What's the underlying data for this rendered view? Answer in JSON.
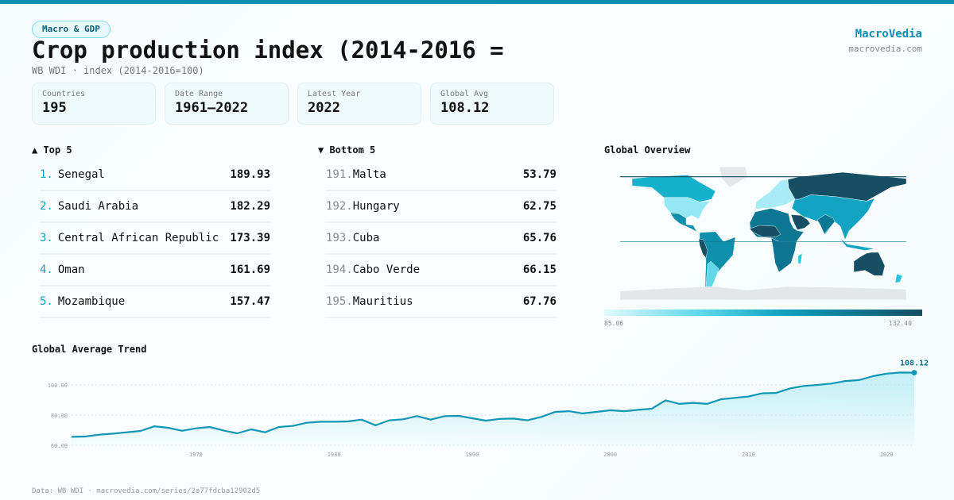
{
  "category": "Macro & GDP",
  "title": "Crop production index (2014-2016 =",
  "subtitle": "WB WDI · index (2014-2016=100)",
  "brand": {
    "name": "MacroVedia",
    "url": "macrovedia.com"
  },
  "stats": [
    {
      "label": "Countries",
      "value": "195"
    },
    {
      "label": "Date Range",
      "value": "1961–2022"
    },
    {
      "label": "Latest Year",
      "value": "2022"
    },
    {
      "label": "Global Avg",
      "value": "108.12"
    }
  ],
  "top": {
    "heading": "▲ Top 5",
    "items": [
      {
        "rank": "1.",
        "name": "Senegal",
        "value": "189.93"
      },
      {
        "rank": "2.",
        "name": "Saudi Arabia",
        "value": "182.29"
      },
      {
        "rank": "3.",
        "name": "Central African Republic",
        "value": "173.39"
      },
      {
        "rank": "4.",
        "name": "Oman",
        "value": "161.69"
      },
      {
        "rank": "5.",
        "name": "Mozambique",
        "value": "157.47"
      }
    ]
  },
  "bottom": {
    "heading": "▼ Bottom 5",
    "items": [
      {
        "rank": "191.",
        "name": "Malta",
        "value": "53.79"
      },
      {
        "rank": "192.",
        "name": "Hungary",
        "value": "62.75"
      },
      {
        "rank": "193.",
        "name": "Cuba",
        "value": "65.76"
      },
      {
        "rank": "194.",
        "name": "Cabo Verde",
        "value": "66.15"
      },
      {
        "rank": "195.",
        "name": "Mauritius",
        "value": "67.76"
      }
    ]
  },
  "map": {
    "heading": "Global Overview",
    "scale_min": "85.06",
    "scale_max": "132.40",
    "colors": [
      "#e2f9fc",
      "#5fd8ea",
      "#12a4c2",
      "#0d7893",
      "#164e63"
    ],
    "no_data_color": "#e4e7ea"
  },
  "chart_data": {
    "type": "area",
    "title": "Global Average Trend",
    "x": [
      1961,
      1962,
      1963,
      1964,
      1965,
      1966,
      1967,
      1968,
      1969,
      1970,
      1971,
      1972,
      1973,
      1974,
      1975,
      1976,
      1977,
      1978,
      1979,
      1980,
      1981,
      1982,
      1983,
      1984,
      1985,
      1986,
      1987,
      1988,
      1989,
      1990,
      1991,
      1992,
      1993,
      1994,
      1995,
      1996,
      1997,
      1998,
      1999,
      2000,
      2001,
      2002,
      2003,
      2004,
      2005,
      2006,
      2007,
      2008,
      2009,
      2010,
      2011,
      2012,
      2013,
      2014,
      2015,
      2016,
      2017,
      2018,
      2019,
      2020,
      2021,
      2022
    ],
    "y": [
      65.6,
      65.8,
      67.0,
      67.7,
      68.6,
      69.5,
      72.6,
      71.6,
      69.6,
      71.2,
      72.1,
      69.8,
      67.9,
      70.5,
      68.6,
      72.1,
      72.8,
      74.9,
      75.6,
      75.6,
      75.8,
      77.0,
      73.2,
      76.5,
      77.2,
      79.3,
      77.0,
      79.3,
      79.5,
      77.9,
      76.3,
      77.5,
      77.7,
      76.5,
      78.8,
      82.1,
      82.6,
      81.1,
      82.1,
      83.2,
      82.6,
      83.5,
      84.2,
      89.8,
      87.4,
      88.1,
      87.4,
      90.4,
      91.4,
      92.3,
      94.4,
      94.7,
      97.7,
      99.3,
      100.0,
      100.9,
      102.6,
      103.2,
      105.8,
      107.5,
      108.2,
      108.12
    ],
    "xticks": [
      "1970",
      "1980",
      "1990",
      "2000",
      "2010",
      "2020"
    ],
    "yticks": [
      "60.00",
      "80.00",
      "100.00"
    ],
    "ylim": [
      60,
      112
    ],
    "last_label": "108.12",
    "color": "#0f97b5",
    "grid": true
  },
  "footer": "Data: WB WDI · macrovedia.com/series/2a77fdcba12902d5"
}
